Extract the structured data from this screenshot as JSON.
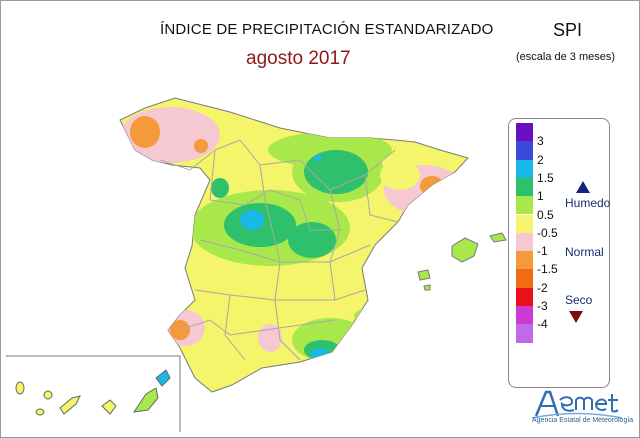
{
  "title": "ÍNDICE DE PRECIPITACIÓN ESTANDARIZADO",
  "subtitle": "agosto 2017",
  "index_label": "SPI",
  "scale_note": "(escala de 3 meses)",
  "legend": {
    "ticks": [
      "3",
      "2",
      "1.5",
      "1",
      "0.5",
      "-0.5",
      "-1",
      "-1.5",
      "-2",
      "-3",
      "-4"
    ],
    "colors": [
      "#6a0fbf",
      "#3a4ad8",
      "#18b8e8",
      "#2ec06a",
      "#a8e84a",
      "#f4f56a",
      "#f5c8d2",
      "#f49a3a",
      "#f36a16",
      "#e8101a",
      "#cc3ad6",
      "#c06ae8"
    ],
    "wet_label": "Humedo",
    "normal_label": "Normal",
    "dry_label": "Seco"
  },
  "logo": {
    "name": "AEMet",
    "caption": "Agencia Estatal de Meteorología"
  }
}
